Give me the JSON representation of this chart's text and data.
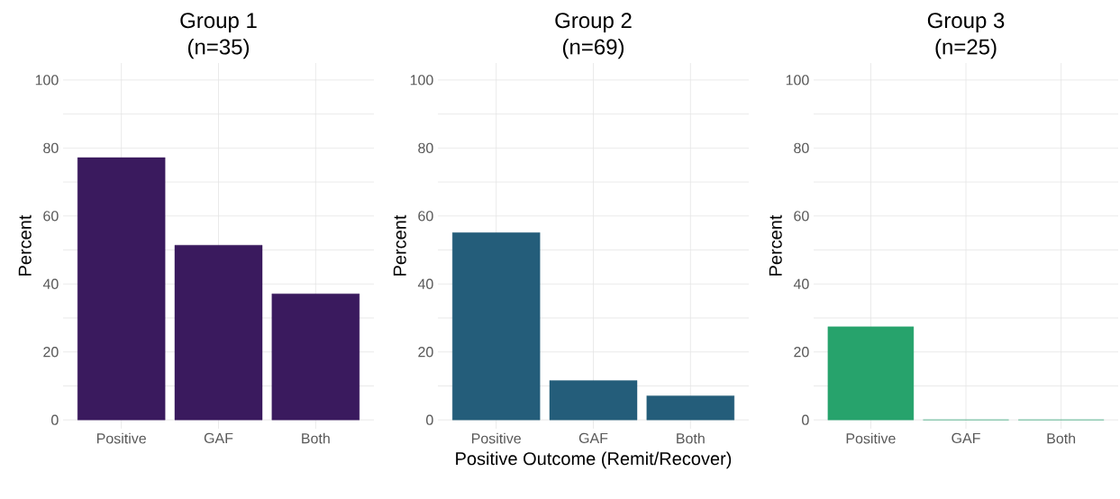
{
  "chart_data": [
    {
      "type": "bar",
      "title": "Group 1",
      "subtitle": "(n=35)",
      "ylabel": "Percent",
      "categories": [
        "Positive",
        "GAF",
        "Both"
      ],
      "values": [
        77.2,
        51.4,
        37.1
      ],
      "color": "#3a1a5e",
      "ylim": [
        -2.6,
        105
      ],
      "yticks": [
        0,
        {
          "value": 10,
          "label": null
        },
        20,
        {
          "value": 30,
          "label": null
        },
        40,
        {
          "value": 50,
          "label": null
        },
        60,
        {
          "value": 70,
          "label": null
        },
        80,
        {
          "value": 90,
          "label": null
        },
        100
      ],
      "grid": true
    },
    {
      "type": "bar",
      "title": "Group 2",
      "subtitle": "(n=69)",
      "ylabel": "Percent",
      "xlabel": "Positive Outcome (Remit/Recover)",
      "categories": [
        "Positive",
        "GAF",
        "Both"
      ],
      "values": [
        55.1,
        11.6,
        7.1
      ],
      "color": "#245d7a",
      "ylim": [
        -2.6,
        105
      ],
      "yticks": [
        0,
        {
          "value": 10,
          "label": null
        },
        20,
        {
          "value": 30,
          "label": null
        },
        40,
        {
          "value": 50,
          "label": null
        },
        60,
        {
          "value": 70,
          "label": null
        },
        80,
        {
          "value": 90,
          "label": null
        },
        100
      ],
      "grid": true
    },
    {
      "type": "bar",
      "title": "Group 3",
      "subtitle": "(n=25)",
      "ylabel": "Percent",
      "categories": [
        "Positive",
        "GAF",
        "Both"
      ],
      "values": [
        27.4,
        0,
        0
      ],
      "color": "#27a36c",
      "ylim": [
        -2.6,
        105
      ],
      "yticks": [
        0,
        {
          "value": 10,
          "label": null
        },
        20,
        {
          "value": 30,
          "label": null
        },
        40,
        {
          "value": 50,
          "label": null
        },
        60,
        {
          "value": 70,
          "label": null
        },
        80,
        {
          "value": 90,
          "label": null
        },
        100
      ],
      "grid": true
    }
  ]
}
